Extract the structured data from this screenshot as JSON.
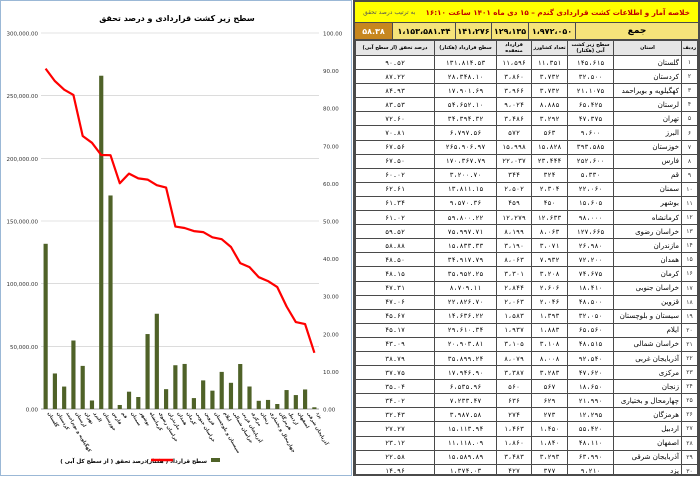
{
  "table": {
    "title": "خلاصه آمار و اطلاعات کشت قراردادی گندم – ۱۵ دی ماه ۱۴۰۱ ساعت ۱۶:۱۰",
    "subtitle": "به ترتیب درصد تحقق",
    "total_label": "جمع",
    "totals": [
      "۱،۹۷۲،۰۵۰",
      "۱۲۹،۱۳۵",
      "۱۴۱،۲۷۶",
      "۱،۱۵۳،۵۸۱.۳۴",
      "۵۸.۳۸"
    ],
    "headers": [
      "ردیف",
      "استان",
      "سطح زیر کشت آبی (هکتار)",
      "تعداد کشاورز",
      "قرارداد منعقده",
      "سطح قرارداد (هکتار)",
      "درصد تحقق (از سطح آبی)"
    ],
    "rows": [
      [
        "۱",
        "گلستان",
        "۱۴۵،۶۱۵",
        "۱۱،۳۵۱",
        "۱۱،۵۹۶",
        "۱۳۱،۸۱۴.۵۳",
        "۹۰.۵۲"
      ],
      [
        "۲",
        "کردستان",
        "۳۲،۵۰۰",
        "۳،۷۳۲",
        "۳،۸۶۰",
        "۲۸،۳۴۸.۱۰",
        "۸۷.۲۲"
      ],
      [
        "۳",
        "کهگیلویه و بویراحمد",
        "۲۱،۱۰۷۵",
        "۳،۷۳۲",
        "۳،۹۶۶",
        "۱۷،۹۰۱.۶۹",
        "۸۴.۹۳"
      ],
      [
        "۴",
        "لرستان",
        "۶۵،۴۲۵",
        "۸،۸۸۵",
        "۹،۰۲۴",
        "۵۴،۶۵۲.۱۰",
        "۸۳.۵۳"
      ],
      [
        "۵",
        "تهران",
        "۴۷،۳۷۵",
        "۳،۲۹۲",
        "۳،۴۸۶",
        "۳۴،۳۹۴.۳۲",
        "۷۲.۶۰"
      ],
      [
        "۶",
        "البرز",
        "۹،۶۰۰",
        "۵۶۳",
        "۵۷۲",
        "۶،۷۹۷.۵۶",
        "۷۰.۸۱"
      ],
      [
        "۷",
        "خوزستان",
        "۳۹۳،۵۸۵",
        "۱۵،۸۲۸",
        "۱۵،۹۹۸",
        "۲۶۵،۹۰۶.۹۷",
        "۶۷.۵۶"
      ],
      [
        "۸",
        "فارس",
        "۲۵۲،۶۰۰",
        "۲۳،۴۴۴",
        "۲۲،۰۳۷",
        "۱۷۰،۳۶۷.۷۹",
        "۶۷.۵۰"
      ],
      [
        "۹",
        "قم",
        "۵،۳۳۰",
        "۳۲۴",
        "۳۴۴",
        "۳،۲۰۰.۷۰",
        "۶۰.۰۲"
      ],
      [
        "۱۰",
        "سمنان",
        "۲۲،۰۶۰",
        "۲،۳۰۴",
        "۲،۵۰۲",
        "۱۳،۸۱۱.۱۵",
        "۶۲.۶۱"
      ],
      [
        "۱۱",
        "بوشهر",
        "۱۵،۶۰۵",
        "۴۵۰",
        "۴۵۹",
        "۹،۵۷۰.۳۶",
        "۶۱.۳۴"
      ],
      [
        "۱۲",
        "کرمانشاه",
        "۹۸،۰۰۰",
        "۱۲،۶۳۳",
        "۱۲،۲۷۹",
        "۵۹،۸۰۰.۲۲",
        "۶۱.۰۲"
      ],
      [
        "۱۳",
        "خراسان رضوی",
        "۱۲۷،۶۶۵",
        "۸،۰۶۳",
        "۸،۱۹۹",
        "۷۵،۹۹۷.۷۱",
        "۵۹.۵۲"
      ],
      [
        "۱۴",
        "مازندران",
        "۲۶،۹۸۰",
        "۳،۰۷۱",
        "۳،۱۹۰",
        "۱۵،۸۳۳.۳۳",
        "۵۸.۸۸"
      ],
      [
        "۱۵",
        "همدان",
        "۷۲،۲۰۰",
        "۷،۹۳۲",
        "۸،۰۶۳",
        "۳۴،۹۱۷.۷۹",
        "۴۸.۵۰"
      ],
      [
        "۱۶",
        "کرمان",
        "۷۴،۶۷۵",
        "۳،۲۰۸",
        "۳،۳۰۱",
        "۳۵،۹۵۲.۲۵",
        "۴۸.۱۵"
      ],
      [
        "۱۷",
        "خراسان جنوبی",
        "۱۸،۴۱۰",
        "۲،۶۰۶",
        "۲،۸۴۴",
        "۸،۷۰۹.۱۱",
        "۴۷.۳۱"
      ],
      [
        "۱۸",
        "قزوین",
        "۴۸،۵۰۰",
        "۲،۰۴۶",
        "۲،۰۶۳",
        "۲۲،۸۲۶.۷۰",
        "۴۷.۰۶"
      ],
      [
        "۱۹",
        "سیستان و بلوچستان",
        "۳۲،۰۵۰",
        "۱،۳۹۳",
        "۱،۵۸۳",
        "۱۴،۶۳۶.۲۲",
        "۴۵.۶۷"
      ],
      [
        "۲۰",
        "ایلام",
        "۶۵،۵۶۰",
        "۱،۸۸۳",
        "۱،۹۳۷",
        "۲۹،۶۱۰.۳۴",
        "۴۵.۱۷"
      ],
      [
        "۲۱",
        "خراسان شمالی",
        "۴۸،۵۱۵",
        "۳،۱۰۸",
        "۳،۱۰۵",
        "۲۰،۹۰۳.۸۱",
        "۴۳.۰۹"
      ],
      [
        "۲۲",
        "آذربایجان غربی",
        "۹۲،۵۴۰",
        "۸،۰۰۸",
        "۸،۰۷۹",
        "۳۵،۸۹۹.۲۴",
        "۳۸.۷۹"
      ],
      [
        "۲۳",
        "مرکزی",
        "۴۷،۶۲۰",
        "۳،۲۸۳",
        "۳،۳۸۷",
        "۱۷،۹۴۶.۹۰",
        "۳۷.۷۵"
      ],
      [
        "۲۴",
        "زنجان",
        "۱۸،۶۵۰",
        "۵۶۷",
        "۵۶۰",
        "۶،۵۳۵.۹۶",
        "۳۵.۰۴"
      ],
      [
        "۲۵",
        "چهارمحال و بختیاری",
        "۲۱،۹۹۰",
        "۶۲۹",
        "۶۳۶",
        "۷،۲۳۳.۴۷",
        "۳۴.۰۲"
      ],
      [
        "۲۶",
        "هرمزگان",
        "۱۲،۲۹۵",
        "۲۷۳",
        "۲۷۴",
        "۳،۹۸۷.۵۸",
        "۳۲.۴۳"
      ],
      [
        "۲۷",
        "اردبیل",
        "۵۵،۴۲۰",
        "۱،۴۵۰",
        "۱،۴۶۳",
        "۱۵،۱۱۳.۹۴",
        "۲۷.۲۷"
      ],
      [
        "۲۸",
        "اصفهان",
        "۴۸،۱۱۰",
        "۱،۸۴۰",
        "۱،۸۶۰",
        "۱۱،۱۱۸.۰۹",
        "۲۳.۱۲"
      ],
      [
        "۲۹",
        "آذربایجان شرقی",
        "۶۳،۹۹۰",
        "۳،۲۹۳",
        "۳،۴۸۳",
        "۱۵،۵۸۹.۸۹",
        "۲۲.۵۸"
      ],
      [
        "۳۰",
        "یزد",
        "۹،۲۱۰",
        "۳۷۷",
        "۴۲۷",
        "۱،۳۷۴.۰۳",
        "۱۴.۹۶"
      ]
    ]
  },
  "chart_data": {
    "type": "bar",
    "title": "سطح زیر کشت قراردادی و درصد تحقق",
    "categories": [
      "گلستان",
      "کردستان",
      "کهگیلویه و بویراحمد",
      "لرستان",
      "تهران",
      "البرز",
      "خوزستان",
      "فارس",
      "قم",
      "سمنان",
      "بوشهر",
      "کرمانشاه",
      "خراسان رضوی",
      "مازندران",
      "همدان",
      "کرمان",
      "خراسان جنوبی",
      "قزوین",
      "سیستان و بلوچستان",
      "ایلام",
      "خراسان شمالی",
      "آذربایجان غربی",
      "مرکزی",
      "زنجان",
      "چهارمحال و بختیاری",
      "هرمزگان",
      "اردبیل",
      "اصفهان",
      "آذربایجان شرقی",
      "یزد"
    ],
    "series": [
      {
        "name": "سطح قرارداد ( هکتار)",
        "type": "bar",
        "axis": "left",
        "color": "#4f6228",
        "values": [
          131814.53,
          28348.1,
          17901.69,
          54652.1,
          34394.32,
          6797.56,
          265906.97,
          170367.79,
          3200.7,
          13811.15,
          9570.36,
          59800.22,
          75997.71,
          15833.33,
          34917.79,
          35952.25,
          8709.11,
          22826.7,
          14636.22,
          29610.34,
          20903.81,
          35899.24,
          17946.9,
          6535.96,
          7233.47,
          3987.58,
          15113.94,
          11118.09,
          15589.89,
          1374.03
        ]
      },
      {
        "name": "درصد تحقق ( از سطح کل آبی )",
        "type": "line",
        "axis": "right",
        "color": "#ff0000",
        "values": [
          90.52,
          87.22,
          84.93,
          83.53,
          72.6,
          70.81,
          67.56,
          67.5,
          60.02,
          62.61,
          61.34,
          61.02,
          59.52,
          58.88,
          48.5,
          48.15,
          47.31,
          47.06,
          45.67,
          45.17,
          43.09,
          38.79,
          37.75,
          35.04,
          34.02,
          32.43,
          27.27,
          23.12,
          22.58,
          14.96
        ]
      }
    ],
    "ylim_left": [
      0,
      300000
    ],
    "ylim_right": [
      0,
      100
    ],
    "left_ticks": [
      "0.00",
      "50,000.00",
      "100,000.00",
      "150,000.00",
      "200,000.00",
      "250,000.00",
      "300,000.00"
    ],
    "right_ticks": [
      "0.00",
      "10.00",
      "20.00",
      "30.00",
      "40.00",
      "50.00",
      "60.00",
      "70.00",
      "80.00",
      "90.00",
      "100.00"
    ],
    "grid": true,
    "legend_position": "bottom"
  }
}
